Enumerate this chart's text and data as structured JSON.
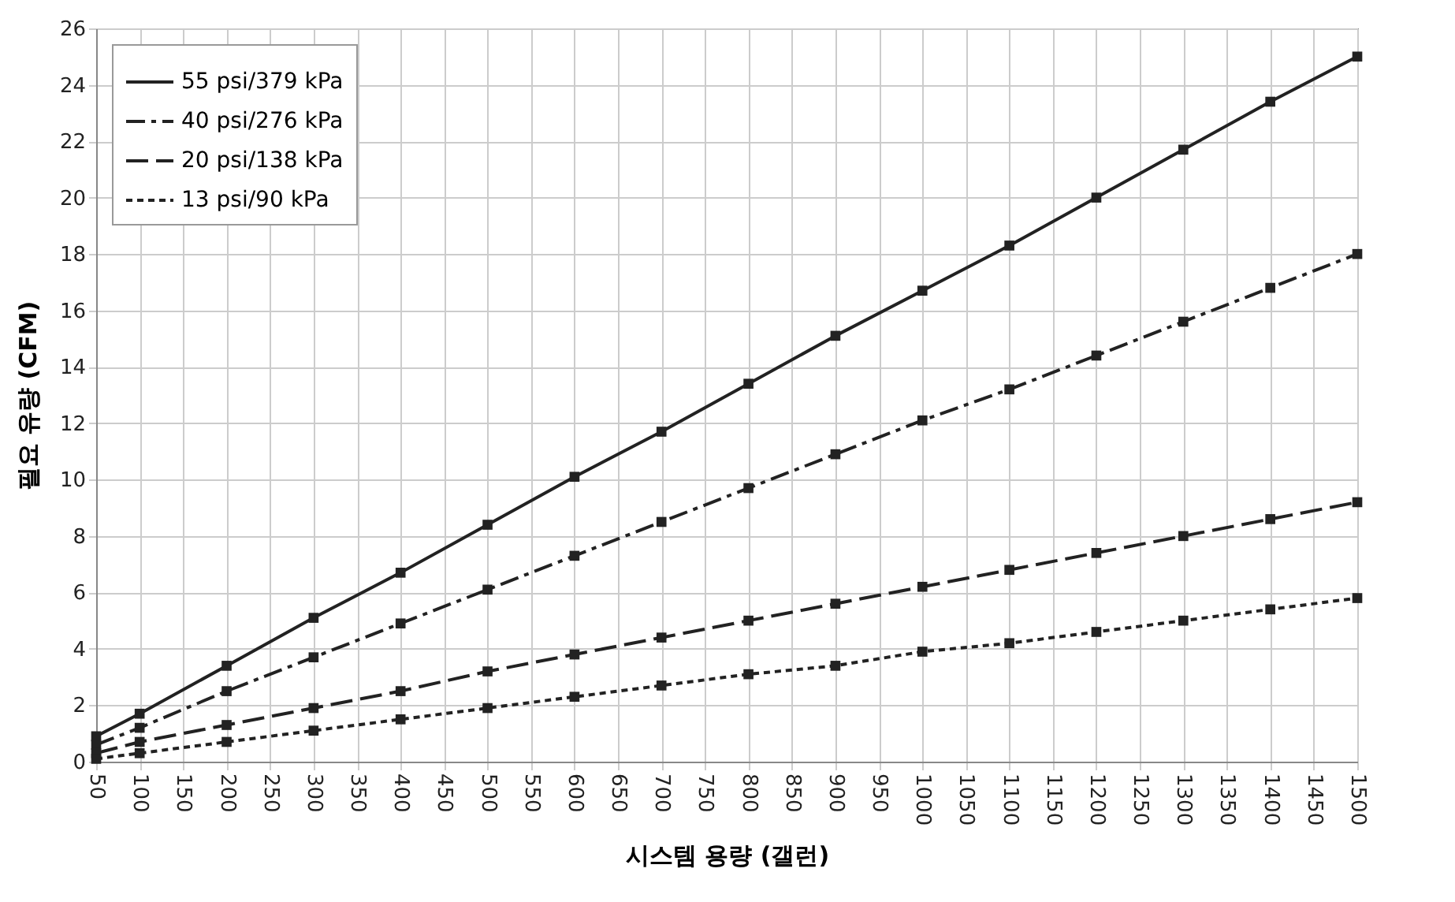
{
  "chart_data": {
    "type": "line",
    "xlabel": "시스템 용량 (갤런)",
    "ylabel": "필요 유량 (CFM)",
    "x": [
      50,
      100,
      200,
      300,
      400,
      500,
      600,
      700,
      800,
      900,
      1000,
      1100,
      1200,
      1300,
      1400,
      1500
    ],
    "series": [
      {
        "name": "55 psi/379 kPa",
        "color": "#222222",
        "line_style": "solid",
        "values": [
          0.9,
          1.7,
          3.4,
          5.1,
          6.7,
          8.4,
          10.1,
          11.7,
          13.4,
          15.1,
          16.7,
          18.3,
          20.0,
          21.7,
          23.4,
          25.0
        ]
      },
      {
        "name": "40 psi/276 kPa",
        "color": "#222222",
        "line_style": "dashdot",
        "values": [
          0.6,
          1.2,
          2.5,
          3.7,
          4.9,
          6.1,
          7.3,
          8.5,
          9.7,
          10.9,
          12.1,
          13.2,
          14.4,
          15.6,
          16.8,
          18.0
        ]
      },
      {
        "name": "20 psi/138 kPa",
        "color": "#222222",
        "line_style": "dashed",
        "values": [
          0.3,
          0.7,
          1.3,
          1.9,
          2.5,
          3.2,
          3.8,
          4.4,
          5.0,
          5.6,
          6.2,
          6.8,
          7.4,
          8.0,
          8.6,
          9.2
        ]
      },
      {
        "name": "13 psi/90 kPa",
        "color": "#222222",
        "line_style": "dotted",
        "values": [
          0.1,
          0.3,
          0.7,
          1.1,
          1.5,
          1.9,
          2.3,
          2.7,
          3.1,
          3.4,
          3.9,
          4.2,
          4.6,
          5.0,
          5.4,
          5.8
        ]
      }
    ],
    "xlim": [
      50,
      1500
    ],
    "xticks": [
      50,
      100,
      150,
      200,
      250,
      300,
      350,
      400,
      450,
      500,
      550,
      600,
      650,
      700,
      750,
      800,
      850,
      900,
      950,
      1000,
      1050,
      1100,
      1150,
      1200,
      1250,
      1300,
      1350,
      1400,
      1450,
      1500
    ],
    "ylim": [
      0,
      26
    ],
    "yticks": [
      0,
      2,
      4,
      6,
      8,
      10,
      12,
      14,
      16,
      18,
      20,
      22,
      24,
      26
    ],
    "grid": true,
    "legend": "top left",
    "marker": "square"
  }
}
